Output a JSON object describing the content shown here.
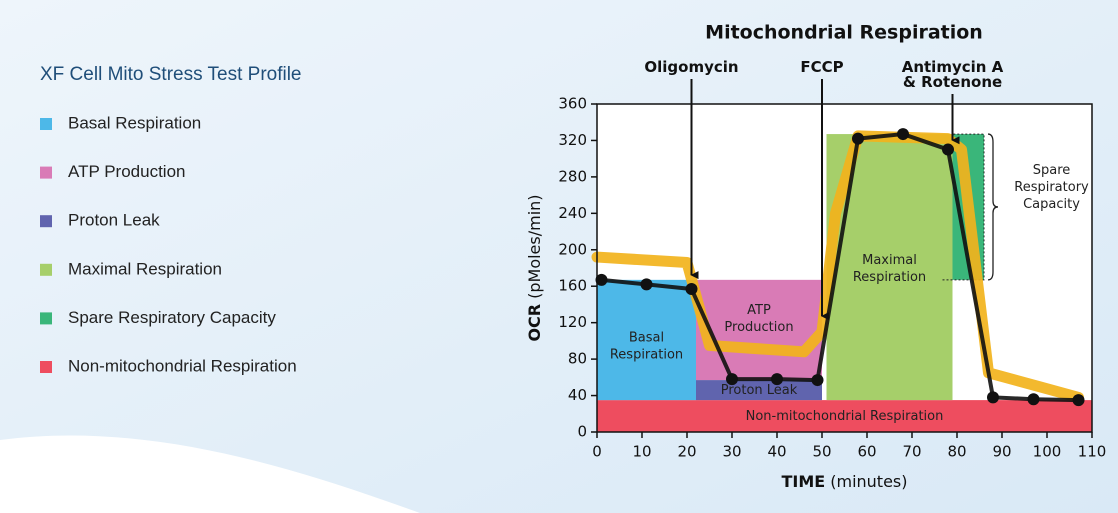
{
  "panel": {
    "title": "XF Cell Mito Stress Test Profile",
    "items": [
      {
        "label": "Basal Respiration",
        "color": "#4db8e8"
      },
      {
        "label": "ATP Production",
        "color": "#d97bb6"
      },
      {
        "label": "Proton Leak",
        "color": "#6064ae"
      },
      {
        "label": "Maximal Respiration",
        "color": "#a6cf6a"
      },
      {
        "label": "Spare Respiratory Capacity",
        "color": "#3ab67a"
      },
      {
        "label": "Non-mitochondrial Respiration",
        "color": "#ee4d5f"
      }
    ]
  },
  "chart_data": {
    "type": "line",
    "title": "Mitochondrial Respiration",
    "xlabel": [
      "TIME",
      "(minutes)"
    ],
    "ylabel": [
      "OCR",
      "(pMoles/min)"
    ],
    "xlim": [
      0,
      110
    ],
    "ylim": [
      0,
      360
    ],
    "xticks": [
      0,
      10,
      20,
      30,
      40,
      50,
      60,
      70,
      80,
      90,
      100,
      110
    ],
    "yticks": [
      0,
      40,
      80,
      120,
      160,
      200,
      240,
      280,
      320,
      360
    ],
    "regions": [
      {
        "label": [
          "Non-mitochondrial Respiration"
        ],
        "x": [
          0,
          110
        ],
        "y": [
          0,
          35
        ],
        "color": "#ee4d5f"
      },
      {
        "label": [
          "Basal",
          "Respiration"
        ],
        "x": [
          0,
          22
        ],
        "y": [
          35,
          167
        ],
        "color": "#4db8e8"
      },
      {
        "label": [
          "Proton Leak"
        ],
        "x": [
          22,
          50
        ],
        "y": [
          35,
          57
        ],
        "color": "#6064ae"
      },
      {
        "label": [
          "ATP",
          "Production"
        ],
        "x": [
          22,
          50
        ],
        "y": [
          57,
          167
        ],
        "color": "#d97bb6"
      },
      {
        "label": [
          "Maximal",
          "Respiration"
        ],
        "x": [
          51,
          79
        ],
        "y": [
          35,
          327
        ],
        "color": "#a6cf6a"
      },
      {
        "label": [
          "Spare",
          "Respiratory",
          "Capacity"
        ],
        "x": [
          79,
          86
        ],
        "y": [
          167,
          327
        ],
        "color": "#3ab67a"
      }
    ],
    "series": [
      {
        "color": "#f2b31c",
        "x": [
          0,
          20,
          25,
          46,
          50,
          53,
          58,
          78,
          81,
          87,
          107
        ],
        "values": [
          192,
          186,
          95,
          88,
          110,
          240,
          325,
          322,
          310,
          65,
          38
        ]
      },
      {
        "color": "#111111",
        "x": [
          1,
          11,
          21,
          30,
          40,
          49,
          58,
          68,
          78,
          88,
          97,
          107
        ],
        "values": [
          167,
          162,
          157,
          58,
          58,
          57,
          322,
          327,
          310,
          38,
          36,
          35
        ]
      }
    ],
    "annotations": [
      {
        "label": [
          "Oligomycin"
        ],
        "x": 21,
        "y": 170
      },
      {
        "label": [
          "FCCP"
        ],
        "x": 50,
        "y": 125
      },
      {
        "label": [
          "Antimycin A",
          "& Rotenone"
        ],
        "x": 79,
        "y": 318
      }
    ]
  }
}
